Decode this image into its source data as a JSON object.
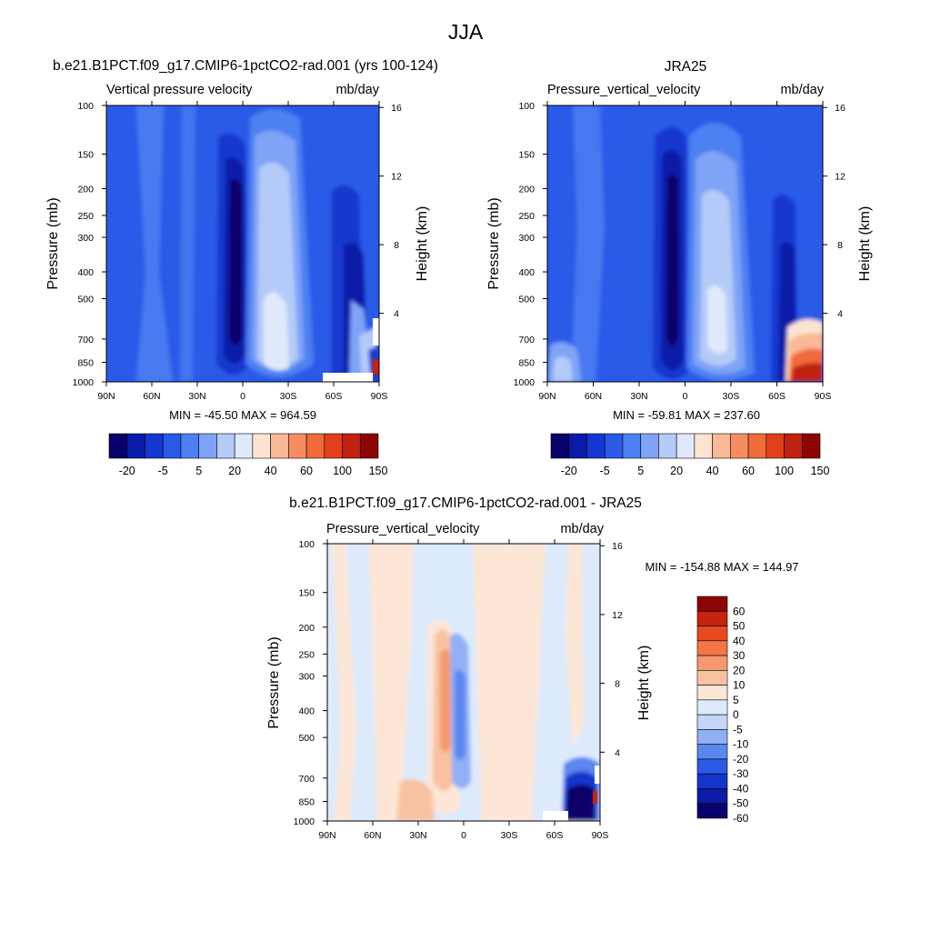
{
  "season_title": "JJA",
  "chart_data": [
    {
      "type": "heatmap",
      "title": "b.e21.B1PCT.f09_g17.CMIP6-1pctCO2-rad.001 (yrs 100-124)",
      "left_label": "Vertical pressure velocity",
      "right_label": "mb/day",
      "ylabel": "Pressure (mb)",
      "ylabel_right": "Height (km)",
      "xticks": [
        "90N",
        "60N",
        "30N",
        "0",
        "30S",
        "60S",
        "90S"
      ],
      "yticks": [
        "100",
        "150",
        "200",
        "250",
        "300",
        "400",
        "500",
        "700",
        "850",
        "1000"
      ],
      "height_ticks": [
        "16",
        "12",
        "8",
        "4"
      ],
      "stats": "MIN = -45.50  MAX = 964.59",
      "colorbar_labels": [
        "-20",
        "-5",
        "5",
        "20",
        "40",
        "60",
        "100",
        "150"
      ]
    },
    {
      "type": "heatmap",
      "title": "JRA25",
      "left_label": "Pressure_vertical_velocity",
      "right_label": "mb/day",
      "ylabel": "Pressure (mb)",
      "ylabel_right": "Height (km)",
      "xticks": [
        "90N",
        "60N",
        "30N",
        "0",
        "30S",
        "60S",
        "90S"
      ],
      "yticks": [
        "100",
        "150",
        "200",
        "250",
        "300",
        "400",
        "500",
        "700",
        "850",
        "1000"
      ],
      "height_ticks": [
        "16",
        "12",
        "8",
        "4"
      ],
      "stats": "MIN = -59.81  MAX = 237.60",
      "colorbar_labels": [
        "-20",
        "-5",
        "5",
        "20",
        "40",
        "60",
        "100",
        "150"
      ]
    },
    {
      "type": "heatmap",
      "title": "b.e21.B1PCT.f09_g17.CMIP6-1pctCO2-rad.001 - JRA25",
      "left_label": "Pressure_vertical_velocity",
      "right_label": "mb/day",
      "ylabel": "Pressure (mb)",
      "ylabel_right": "Height (km)",
      "xticks": [
        "90N",
        "60N",
        "30N",
        "0",
        "30S",
        "60S",
        "90S"
      ],
      "yticks": [
        "100",
        "150",
        "200",
        "250",
        "300",
        "400",
        "500",
        "700",
        "850",
        "1000"
      ],
      "height_ticks": [
        "16",
        "12",
        "8",
        "4"
      ],
      "stats": "MIN = -154.88  MAX = 144.97",
      "colorbar_labels": [
        "60",
        "50",
        "40",
        "30",
        "20",
        "10",
        "5",
        "0",
        "-5",
        "-10",
        "-20",
        "-30",
        "-40",
        "-50",
        "-60"
      ]
    }
  ],
  "colors": {
    "abs_scale": [
      "#08006b",
      "#0a1ba8",
      "#1437cf",
      "#2a5ae8",
      "#4d80f2",
      "#7ea3f7",
      "#b4cbf8",
      "#dfe9fb",
      "#fde4d2",
      "#f9b896",
      "#f68d62",
      "#f06a3a",
      "#e2401b",
      "#c0230f",
      "#8e0505"
    ],
    "diff_scale": [
      "#08006b",
      "#0c1ba3",
      "#1435cc",
      "#2a5ae6",
      "#5b86f0",
      "#90aff5",
      "#c4d6f8",
      "#ddeafc",
      "#fde6d6",
      "#f8c2a2",
      "#f59a6e",
      "#f27646",
      "#e9491e",
      "#c5240e",
      "#8c0404"
    ]
  }
}
